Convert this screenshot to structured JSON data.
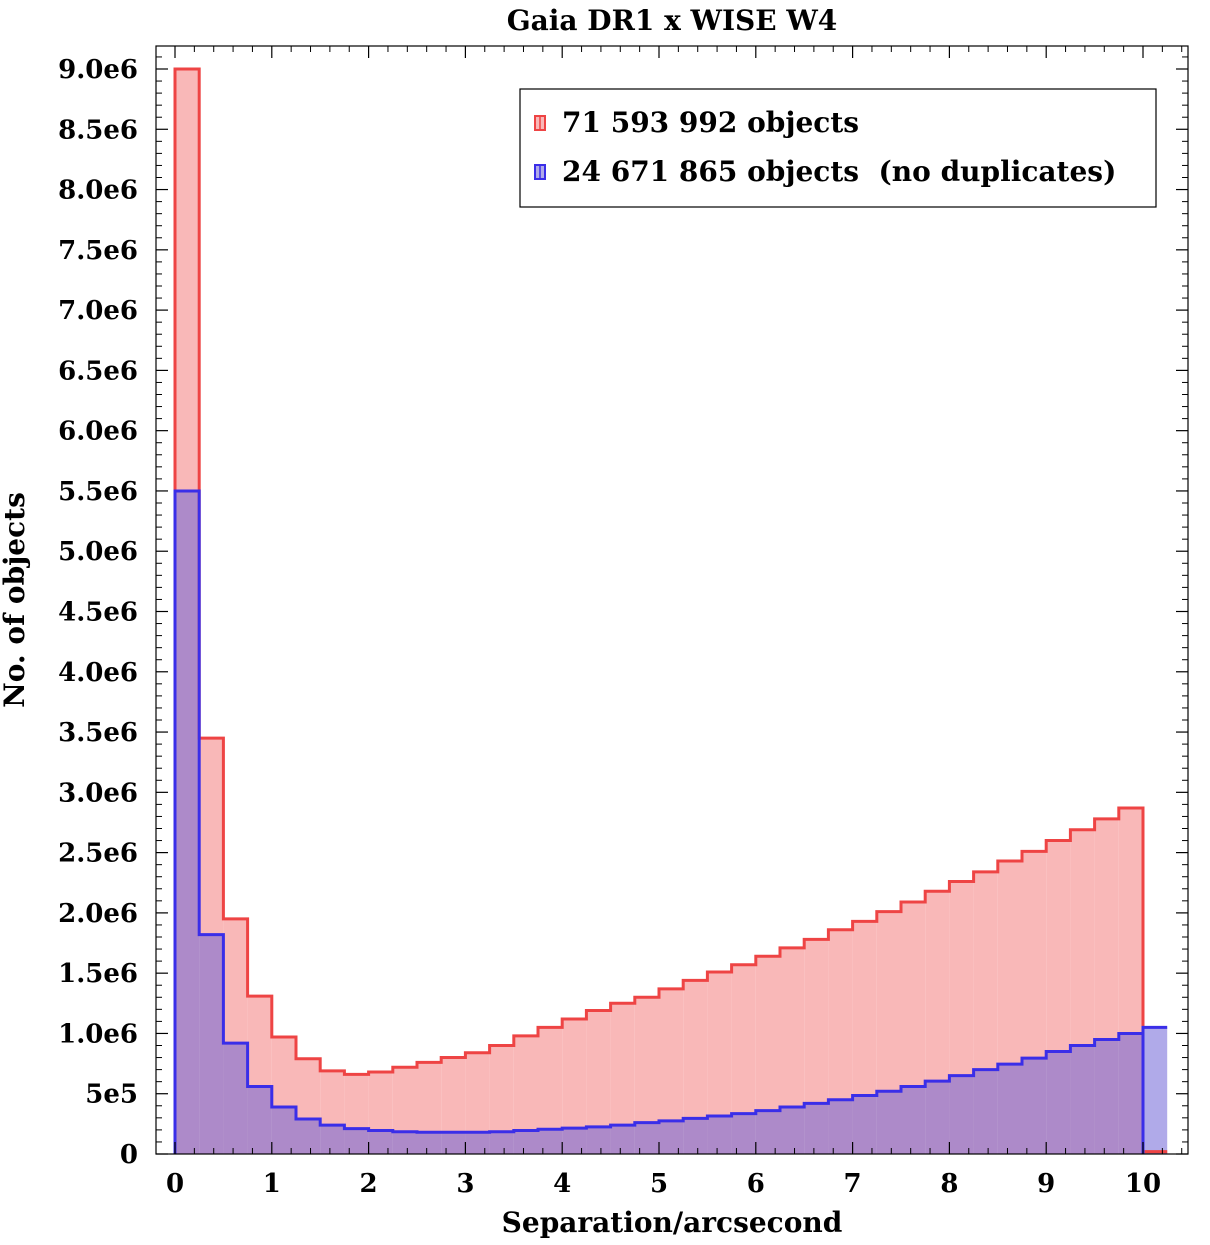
{
  "chart_data": {
    "type": "histogram",
    "title": "Gaia DR1 x WISE W4",
    "xlabel": "Separation/arcsecond",
    "ylabel": "No. of objects",
    "xlim": [
      -0.2,
      10.45
    ],
    "ylim": [
      0,
      9000000.0
    ],
    "bin_width": 0.25,
    "bin_start": 0,
    "x_ticks": [
      0,
      1,
      2,
      3,
      4,
      5,
      6,
      7,
      8,
      9,
      10
    ],
    "x_tick_labels": [
      "0",
      "1",
      "2",
      "3",
      "4",
      "5",
      "6",
      "7",
      "8",
      "9",
      "10"
    ],
    "y_ticks": [
      0,
      500000,
      1000000,
      1500000,
      2000000,
      2500000,
      3000000,
      3500000,
      4000000,
      4500000,
      5000000,
      5500000,
      6000000,
      6500000,
      7000000,
      7500000,
      8000000,
      8500000,
      9000000
    ],
    "y_tick_labels": [
      "0",
      "5e5",
      "1.0e6",
      "1.5e6",
      "2.0e6",
      "2.5e6",
      "3.0e6",
      "3.5e6",
      "4.0e6",
      "4.5e6",
      "5.0e6",
      "5.5e6",
      "6.0e6",
      "6.5e6",
      "7.0e6",
      "7.5e6",
      "8.0e6",
      "8.5e6",
      "9.0e6"
    ],
    "legend_position": "top-right",
    "series": [
      {
        "name": "71 593 992 objects",
        "line_color": "#ee4444",
        "fill_color": "#f9b8b8",
        "values": [
          9000000,
          3450000,
          1950000,
          1310000,
          970000,
          790000,
          690000,
          660000,
          680000,
          720000,
          760000,
          800000,
          840000,
          900000,
          980000,
          1050000,
          1120000,
          1190000,
          1250000,
          1300000,
          1370000,
          1440000,
          1510000,
          1570000,
          1640000,
          1710000,
          1780000,
          1860000,
          1930000,
          2010000,
          2090000,
          2180000,
          2260000,
          2340000,
          2430000,
          2510000,
          2600000,
          2690000,
          2780000,
          2870000,
          20000
        ]
      },
      {
        "name": "24 671 865 objects  (no duplicates)",
        "line_color": "#3a2ee8",
        "fill_color": "rgba(112,100,215,0.55)",
        "values": [
          5500000,
          1820000,
          920000,
          560000,
          390000,
          290000,
          240000,
          210000,
          195000,
          185000,
          180000,
          180000,
          180000,
          185000,
          195000,
          205000,
          215000,
          225000,
          240000,
          260000,
          275000,
          295000,
          315000,
          335000,
          360000,
          390000,
          420000,
          450000,
          485000,
          520000,
          560000,
          605000,
          650000,
          700000,
          745000,
          795000,
          850000,
          900000,
          950000,
          1000000,
          1050000
        ]
      }
    ]
  }
}
